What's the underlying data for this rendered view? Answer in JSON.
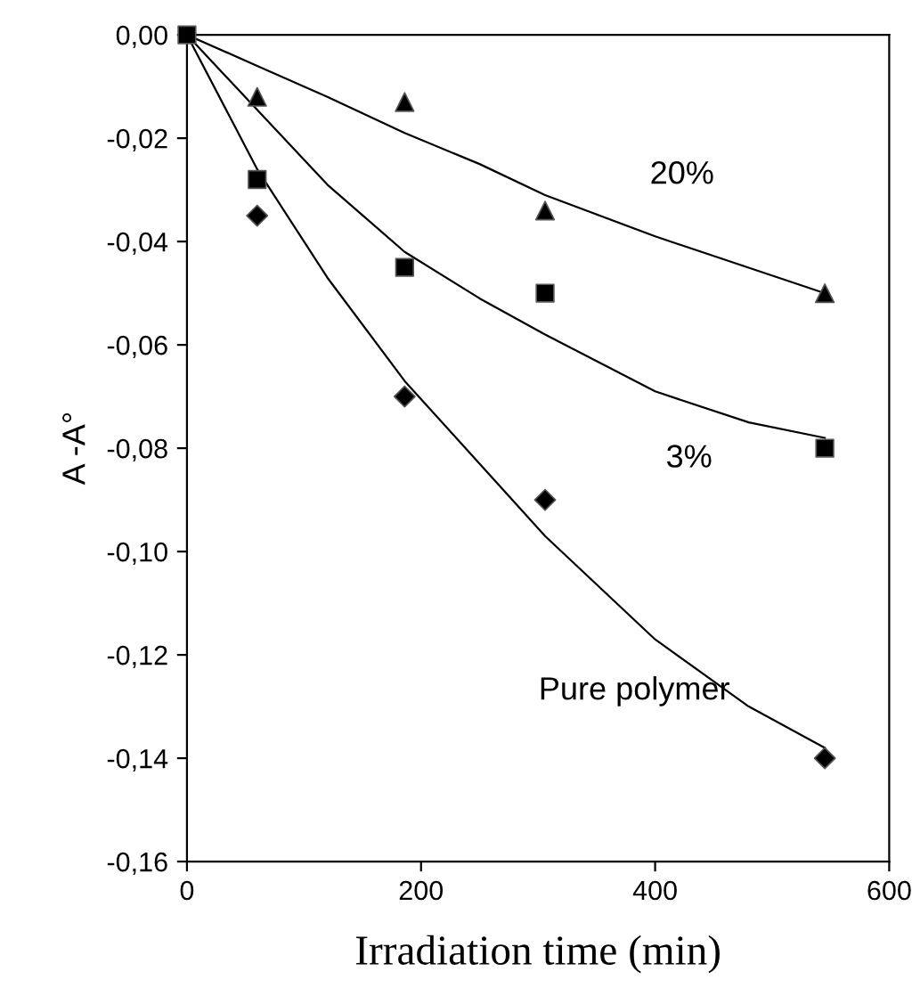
{
  "chart_data": {
    "type": "scatter",
    "xlabel": "Irradiation time (min)",
    "ylabel": "A -A°",
    "xlim": [
      0,
      600
    ],
    "xticks": [
      0,
      200,
      400,
      600
    ],
    "ylim": [
      -0.16,
      0
    ],
    "yticks": [
      {
        "value": 0,
        "label": "0,00"
      },
      {
        "value": -0.02,
        "label": "-0,02"
      },
      {
        "value": -0.04,
        "label": "-0,04"
      },
      {
        "value": -0.06,
        "label": "-0,06"
      },
      {
        "value": -0.08,
        "label": "-0,08"
      },
      {
        "value": -0.1,
        "label": "-0,10"
      },
      {
        "value": -0.12,
        "label": "-0,12"
      },
      {
        "value": -0.14,
        "label": "-0,14"
      },
      {
        "value": -0.16,
        "label": "-0,16"
      }
    ],
    "grid": false,
    "legend": false,
    "series": [
      {
        "type": "scatter",
        "marker": "triangle",
        "color": "#000000",
        "x": [
          60,
          186,
          306,
          545
        ],
        "values": [
          -0.012,
          -0.013,
          -0.034,
          -0.05
        ]
      },
      {
        "type": "scatter",
        "marker": "square",
        "color": "#000000",
        "x": [
          0,
          60,
          186,
          306,
          545
        ],
        "values": [
          0,
          -0.028,
          -0.045,
          -0.05,
          -0.08
        ]
      },
      {
        "type": "scatter",
        "marker": "diamond",
        "color": "#000000",
        "x": [
          60,
          186,
          306,
          545
        ],
        "values": [
          -0.035,
          -0.07,
          -0.09,
          -0.14
        ]
      },
      {
        "type": "line",
        "marker": "none",
        "color": "#000000",
        "x": [
          0,
          60,
          120,
          186,
          250,
          306,
          400,
          545
        ],
        "values": [
          0,
          -0.006,
          -0.012,
          -0.019,
          -0.025,
          -0.031,
          -0.039,
          -0.05
        ]
      },
      {
        "type": "line",
        "marker": "none",
        "color": "#000000",
        "x": [
          0,
          60,
          120,
          186,
          250,
          306,
          400,
          480,
          545
        ],
        "values": [
          0,
          -0.0145,
          -0.029,
          -0.042,
          -0.051,
          -0.058,
          -0.069,
          -0.075,
          -0.078
        ]
      },
      {
        "type": "line",
        "marker": "none",
        "color": "#000000",
        "x": [
          0,
          60,
          120,
          186,
          250,
          306,
          400,
          480,
          545
        ],
        "values": [
          0,
          -0.026,
          -0.047,
          -0.067,
          -0.083,
          -0.097,
          -0.117,
          -0.13,
          -0.138
        ]
      }
    ],
    "annotations": [
      "20%",
      "3%",
      "Pure polymer"
    ]
  }
}
